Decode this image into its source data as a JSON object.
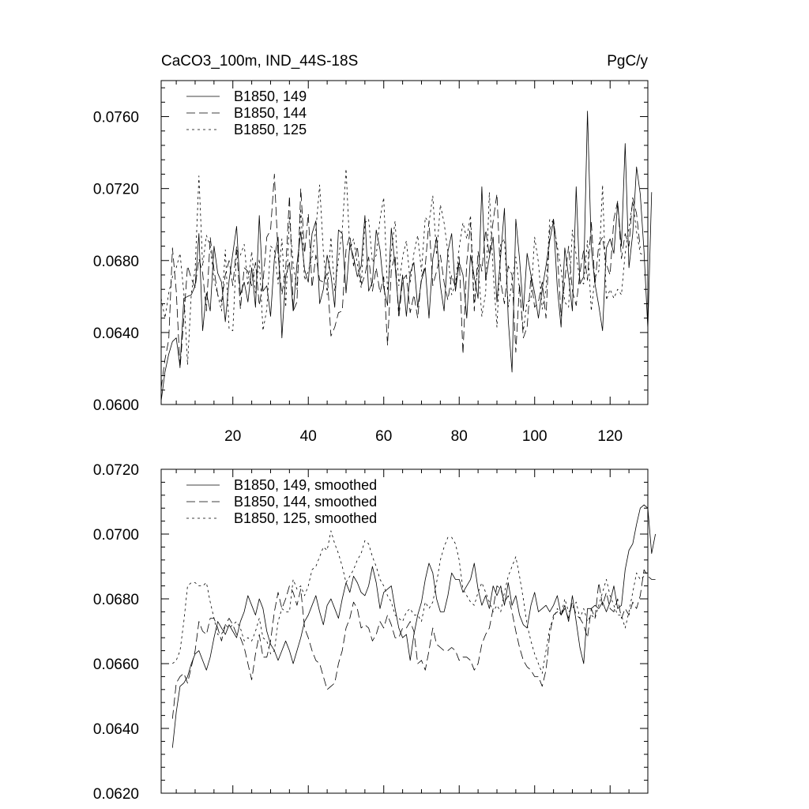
{
  "figure": {
    "title_left": "CaCO3_100m, IND_44S-18S",
    "title_right": "PgC/y"
  },
  "styles": {
    "line_color": "#000000",
    "background": "#ffffff"
  },
  "chart_data": [
    {
      "type": "line",
      "panel": "top",
      "xlim": [
        1,
        130
      ],
      "ylim": [
        0.06,
        0.078
      ],
      "xticks": [
        20,
        40,
        60,
        80,
        100,
        120
      ],
      "xtick_labels": [
        "20",
        "40",
        "60",
        "80",
        "100",
        "120"
      ],
      "yticks": [
        0.06,
        0.064,
        0.068,
        0.072,
        0.076
      ],
      "ytick_labels": [
        "0.0600",
        "0.0640",
        "0.0680",
        "0.0720",
        "0.0760"
      ],
      "legend_position": "top-left",
      "series": [
        {
          "name": "B1850, 149",
          "dash": "solid",
          "x_start": 1,
          "values": [
            0.0602,
            0.0618,
            0.0628,
            0.0635,
            0.0637,
            0.0621,
            0.0659,
            0.066,
            0.0661,
            0.0666,
            0.0695,
            0.0641,
            0.0662,
            0.0652,
            0.0688,
            0.0673,
            0.0668,
            0.0646,
            0.0669,
            0.0684,
            0.0699,
            0.0661,
            0.0668,
            0.0657,
            0.0676,
            0.0654,
            0.0705,
            0.0663,
            0.0666,
            0.0649,
            0.0681,
            0.0693,
            0.0637,
            0.0671,
            0.0679,
            0.0652,
            0.0678,
            0.0696,
            0.0675,
            0.0668,
            0.0695,
            0.0702,
            0.0656,
            0.0664,
            0.0683,
            0.0672,
            0.0654,
            0.0697,
            0.0695,
            0.0662,
            0.0689,
            0.0682,
            0.0671,
            0.0677,
            0.0705,
            0.0663,
            0.0668,
            0.0697,
            0.0686,
            0.0665,
            0.0655,
            0.0698,
            0.0677,
            0.0652,
            0.0672,
            0.0649,
            0.0673,
            0.0679,
            0.0654,
            0.0669,
            0.0676,
            0.0648,
            0.0681,
            0.0693,
            0.0666,
            0.0652,
            0.0685,
            0.0695,
            0.0663,
            0.0679,
            0.0672,
            0.0648,
            0.0683,
            0.0671,
            0.0659,
            0.0721,
            0.0669,
            0.0682,
            0.0693,
            0.0657,
            0.0683,
            0.0709,
            0.0647,
            0.0618,
            0.0703,
            0.0681,
            0.0652,
            0.0684,
            0.0672,
            0.0662,
            0.0648,
            0.0664,
            0.0677,
            0.0691,
            0.0702,
            0.0665,
            0.0643,
            0.0687,
            0.0671,
            0.0652,
            0.0721,
            0.0667,
            0.0671,
            0.0763,
            0.0687,
            0.0667,
            0.0655,
            0.0641,
            0.0687,
            0.0692,
            0.0684,
            0.0712,
            0.0688,
            0.0745,
            0.0676,
            0.0695,
            0.0732,
            0.0717,
            0.0685,
            0.0642,
            0.0718
          ]
        },
        {
          "name": "B1850, 144",
          "dash": "long-dash",
          "x_start": 1,
          "values": [
            0.0609,
            0.0625,
            0.0636,
            0.0687,
            0.0663,
            0.062,
            0.0648,
            0.0677,
            0.067,
            0.0665,
            0.0681,
            0.0673,
            0.0652,
            0.0693,
            0.0675,
            0.0661,
            0.0657,
            0.0672,
            0.068,
            0.0666,
            0.0688,
            0.0653,
            0.0676,
            0.0674,
            0.0666,
            0.0679,
            0.0655,
            0.0668,
            0.0693,
            0.0697,
            0.0728,
            0.0683,
            0.0661,
            0.0675,
            0.0716,
            0.0652,
            0.0657,
            0.072,
            0.0684,
            0.0706,
            0.0665,
            0.0683,
            0.0669,
            0.0668,
            0.0673,
            0.0638,
            0.0643,
            0.0651,
            0.0652,
            0.0686,
            0.0694,
            0.0677,
            0.0688,
            0.0666,
            0.0672,
            0.0682,
            0.0663,
            0.0676,
            0.0662,
            0.0671,
            0.0633,
            0.0675,
            0.0683,
            0.0648,
            0.0669,
            0.0672,
            0.0651,
            0.0661,
            0.0648,
            0.0671,
            0.0677,
            0.0702,
            0.0666,
            0.0674,
            0.0683,
            0.0668,
            0.0658,
            0.0672,
            0.0665,
            0.0682,
            0.0628,
            0.0679,
            0.0701,
            0.0652,
            0.0685,
            0.0674,
            0.0697,
            0.0683,
            0.0702,
            0.0717,
            0.0668,
            0.0656,
            0.0677,
            0.0672,
            0.0629,
            0.0667,
            0.0637,
            0.0643,
            0.0671,
            0.0654,
            0.0657,
            0.0668,
            0.0648,
            0.0697,
            0.0703,
            0.0685,
            0.0649,
            0.0669,
            0.0688,
            0.0663,
            0.0655,
            0.0673,
            0.0686,
            0.0669,
            0.0702,
            0.0667,
            0.0689,
            0.0693,
            0.0678,
            0.0672,
            0.0703,
            0.0713,
            0.0681,
            0.0695,
            0.0688,
            0.0715,
            0.0706,
            0.0687
          ]
        },
        {
          "name": "B1850, 125",
          "dash": "short-dash",
          "x_start": 1,
          "values": [
            0.0659,
            0.0648,
            0.0662,
            0.0671,
            0.0676,
            0.0684,
            0.0662,
            0.0622,
            0.0662,
            0.0675,
            0.0727,
            0.0677,
            0.0694,
            0.0688,
            0.0669,
            0.0661,
            0.0652,
            0.0686,
            0.0642,
            0.0641,
            0.0686,
            0.0683,
            0.0689,
            0.0666,
            0.0685,
            0.0662,
            0.0681,
            0.0641,
            0.0653,
            0.0688,
            0.0686,
            0.0667,
            0.0692,
            0.0654,
            0.0704,
            0.0678,
            0.0664,
            0.0709,
            0.0669,
            0.0674,
            0.0682,
            0.0697,
            0.0722,
            0.0685,
            0.0661,
            0.0693,
            0.0663,
            0.0681,
            0.0697,
            0.0731,
            0.0686,
            0.0692,
            0.0678,
            0.0665,
            0.0701,
            0.0703,
            0.0679,
            0.0683,
            0.0703,
            0.0715,
            0.0663,
            0.0685,
            0.0702,
            0.0666,
            0.0682,
            0.0691,
            0.0668,
            0.0684,
            0.0694,
            0.0674,
            0.0704,
            0.0701,
            0.0716,
            0.0683,
            0.0711,
            0.0701,
            0.0685,
            0.0661,
            0.0667,
            0.0687,
            0.0701,
            0.0692,
            0.0705,
            0.0656,
            0.0678,
            0.0649,
            0.0662,
            0.0718,
            0.0674,
            0.0643,
            0.0689,
            0.0692,
            0.0654,
            0.0668,
            0.0682,
            0.0664,
            0.0641,
            0.0657,
            0.0658,
            0.0693,
            0.0679,
            0.0653,
            0.0664,
            0.0703,
            0.0701,
            0.0688,
            0.0675,
            0.0657,
            0.0654,
            0.0697,
            0.0683,
            0.0669,
            0.0667,
            0.0691,
            0.0652,
            0.0671,
            0.0674,
            0.0722,
            0.0658,
            0.0664,
            0.0659,
            0.0664,
            0.0661,
            0.0684,
            0.0698,
            0.0713,
            0.0696,
            0.0684,
            0.0683
          ]
        }
      ]
    },
    {
      "type": "line",
      "panel": "bottom",
      "xlim": [
        1,
        130
      ],
      "ylim": [
        0.062,
        0.072
      ],
      "xticks": [
        20,
        40,
        60,
        80,
        100,
        120
      ],
      "xtick_labels": [],
      "yticks": [
        0.062,
        0.064,
        0.066,
        0.068,
        0.07,
        0.072
      ],
      "ytick_labels": [
        "0.0620",
        "0.0640",
        "0.0660",
        "0.0680",
        "0.0700",
        "0.0720"
      ],
      "legend_position": "top-left",
      "series": [
        {
          "name": "B1850, 149, smoothed",
          "dash": "solid",
          "x_start": 4,
          "values": [
            0.0634,
            0.0645,
            0.0653,
            0.0654,
            0.0656,
            0.066,
            0.0663,
            0.0664,
            0.0661,
            0.0658,
            0.0662,
            0.0668,
            0.0673,
            0.0671,
            0.0669,
            0.0672,
            0.067,
            0.0668,
            0.0673,
            0.0676,
            0.0681,
            0.0678,
            0.0675,
            0.068,
            0.0677,
            0.067,
            0.0666,
            0.0664,
            0.0661,
            0.0664,
            0.0667,
            0.0664,
            0.066,
            0.0664,
            0.0668,
            0.0673,
            0.0675,
            0.0678,
            0.0681,
            0.0676,
            0.0672,
            0.0678,
            0.068,
            0.0677,
            0.0674,
            0.068,
            0.0685,
            0.0682,
            0.0687,
            0.0685,
            0.0682,
            0.0681,
            0.0684,
            0.069,
            0.0685,
            0.0677,
            0.0682,
            0.0683,
            0.0684,
            0.0677,
            0.0671,
            0.0668,
            0.0669,
            0.0661,
            0.0669,
            0.0675,
            0.0679,
            0.0686,
            0.0691,
            0.0688,
            0.068,
            0.0676,
            0.0676,
            0.0681,
            0.0688,
            0.0686,
            0.0686,
            0.0682,
            0.0684,
            0.0686,
            0.0691,
            0.0683,
            0.0678,
            0.0681,
            0.0677,
            0.0684,
            0.0681,
            0.0684,
            0.0678,
            0.0685,
            0.0678,
            0.0681,
            0.0675,
            0.0672,
            0.0671,
            0.0678,
            0.0682,
            0.0676,
            0.0677,
            0.0678,
            0.0676,
            0.0678,
            0.0681,
            0.0675,
            0.0678,
            0.0673,
            0.0681,
            0.0673,
            0.0665,
            0.066,
            0.0677,
            0.0677,
            0.0678,
            0.0677,
            0.0679,
            0.0676,
            0.0679,
            0.0684,
            0.0677,
            0.0678,
            0.0689,
            0.0695,
            0.0697,
            0.0703,
            0.0708,
            0.0709,
            0.0708,
            0.0694,
            0.07
          ]
        },
        {
          "name": "B1850, 144, smoothed",
          "dash": "long-dash",
          "x_start": 4,
          "values": [
            0.0643,
            0.0654,
            0.0656,
            0.0657,
            0.0654,
            0.0659,
            0.0664,
            0.0673,
            0.067,
            0.0669,
            0.0674,
            0.0674,
            0.0671,
            0.0667,
            0.0672,
            0.0674,
            0.0672,
            0.0669,
            0.0668,
            0.0665,
            0.066,
            0.0655,
            0.0663,
            0.0669,
            0.0662,
            0.0662,
            0.0667,
            0.0676,
            0.0682,
            0.0677,
            0.068,
            0.0684,
            0.0682,
            0.0678,
            0.0683,
            0.0671,
            0.0668,
            0.0664,
            0.0661,
            0.066,
            0.0656,
            0.0652,
            0.0653,
            0.0654,
            0.066,
            0.0664,
            0.0671,
            0.0674,
            0.0679,
            0.0677,
            0.0671,
            0.0672,
            0.0671,
            0.0667,
            0.0669,
            0.0673,
            0.0671,
            0.0675,
            0.0672,
            0.0668,
            0.0668,
            0.0671,
            0.0671,
            0.0673,
            0.067,
            0.066,
            0.0661,
            0.0658,
            0.0664,
            0.0671,
            0.0666,
            0.0665,
            0.0664,
            0.0664,
            0.0665,
            0.0664,
            0.0661,
            0.0662,
            0.0662,
            0.0661,
            0.0658,
            0.066,
            0.0666,
            0.0669,
            0.0671,
            0.0677,
            0.0684,
            0.0683,
            0.0679,
            0.0681,
            0.0676,
            0.067,
            0.0665,
            0.0661,
            0.0659,
            0.0658,
            0.0656,
            0.0656,
            0.0653,
            0.0658,
            0.0669,
            0.0675,
            0.0676,
            0.0675,
            0.0677,
            0.0674,
            0.0679,
            0.0675,
            0.0674,
            0.0672,
            0.0668,
            0.0677,
            0.0674,
            0.0685,
            0.0678,
            0.0682,
            0.0677,
            0.0676,
            0.068,
            0.0674,
            0.0677,
            0.0675,
            0.0679,
            0.0677,
            0.0681,
            0.0689,
            0.0687,
            0.0686,
            0.0686
          ]
        },
        {
          "name": "B1850, 125, smoothed",
          "dash": "short-dash",
          "x_start": 4,
          "values": [
            0.066,
            0.0661,
            0.0664,
            0.0673,
            0.0684,
            0.0685,
            0.0685,
            0.0684,
            0.0684,
            0.0685,
            0.0679,
            0.0674,
            0.0669,
            0.0669,
            0.0672,
            0.0671,
            0.0672,
            0.0673,
            0.0671,
            0.0667,
            0.0668,
            0.0667,
            0.067,
            0.0674,
            0.0668,
            0.0667,
            0.0663,
            0.0664,
            0.0673,
            0.0677,
            0.0676,
            0.0676,
            0.0686,
            0.0683,
            0.0684,
            0.0681,
            0.0684,
            0.0689,
            0.069,
            0.0693,
            0.0696,
            0.0695,
            0.0701,
            0.0697,
            0.0694,
            0.069,
            0.0685,
            0.0687,
            0.0689,
            0.0692,
            0.0694,
            0.0698,
            0.0697,
            0.0693,
            0.069,
            0.0686,
            0.0684,
            0.0681,
            0.0679,
            0.0675,
            0.0674,
            0.0673,
            0.0676,
            0.0677,
            0.0675,
            0.0675,
            0.0673,
            0.0679,
            0.0677,
            0.0679,
            0.0685,
            0.0692,
            0.0696,
            0.0699,
            0.0699,
            0.0697,
            0.0692,
            0.0683,
            0.0681,
            0.0679,
            0.0678,
            0.0682,
            0.0685,
            0.0682,
            0.0679,
            0.0676,
            0.0678,
            0.0676,
            0.0682,
            0.0687,
            0.069,
            0.0693,
            0.0687,
            0.068,
            0.0672,
            0.0667,
            0.0663,
            0.066,
            0.0657,
            0.0664,
            0.0671,
            0.0674,
            0.0677,
            0.0675,
            0.068,
            0.0676,
            0.0677,
            0.0679,
            0.0674,
            0.0677,
            0.0673,
            0.0675,
            0.0674,
            0.0678,
            0.0682,
            0.0686,
            0.0681,
            0.0678,
            0.0675,
            0.0675,
            0.0671,
            0.0676,
            0.0682,
            0.0688,
            0.0686,
            0.0687
          ]
        }
      ]
    }
  ]
}
